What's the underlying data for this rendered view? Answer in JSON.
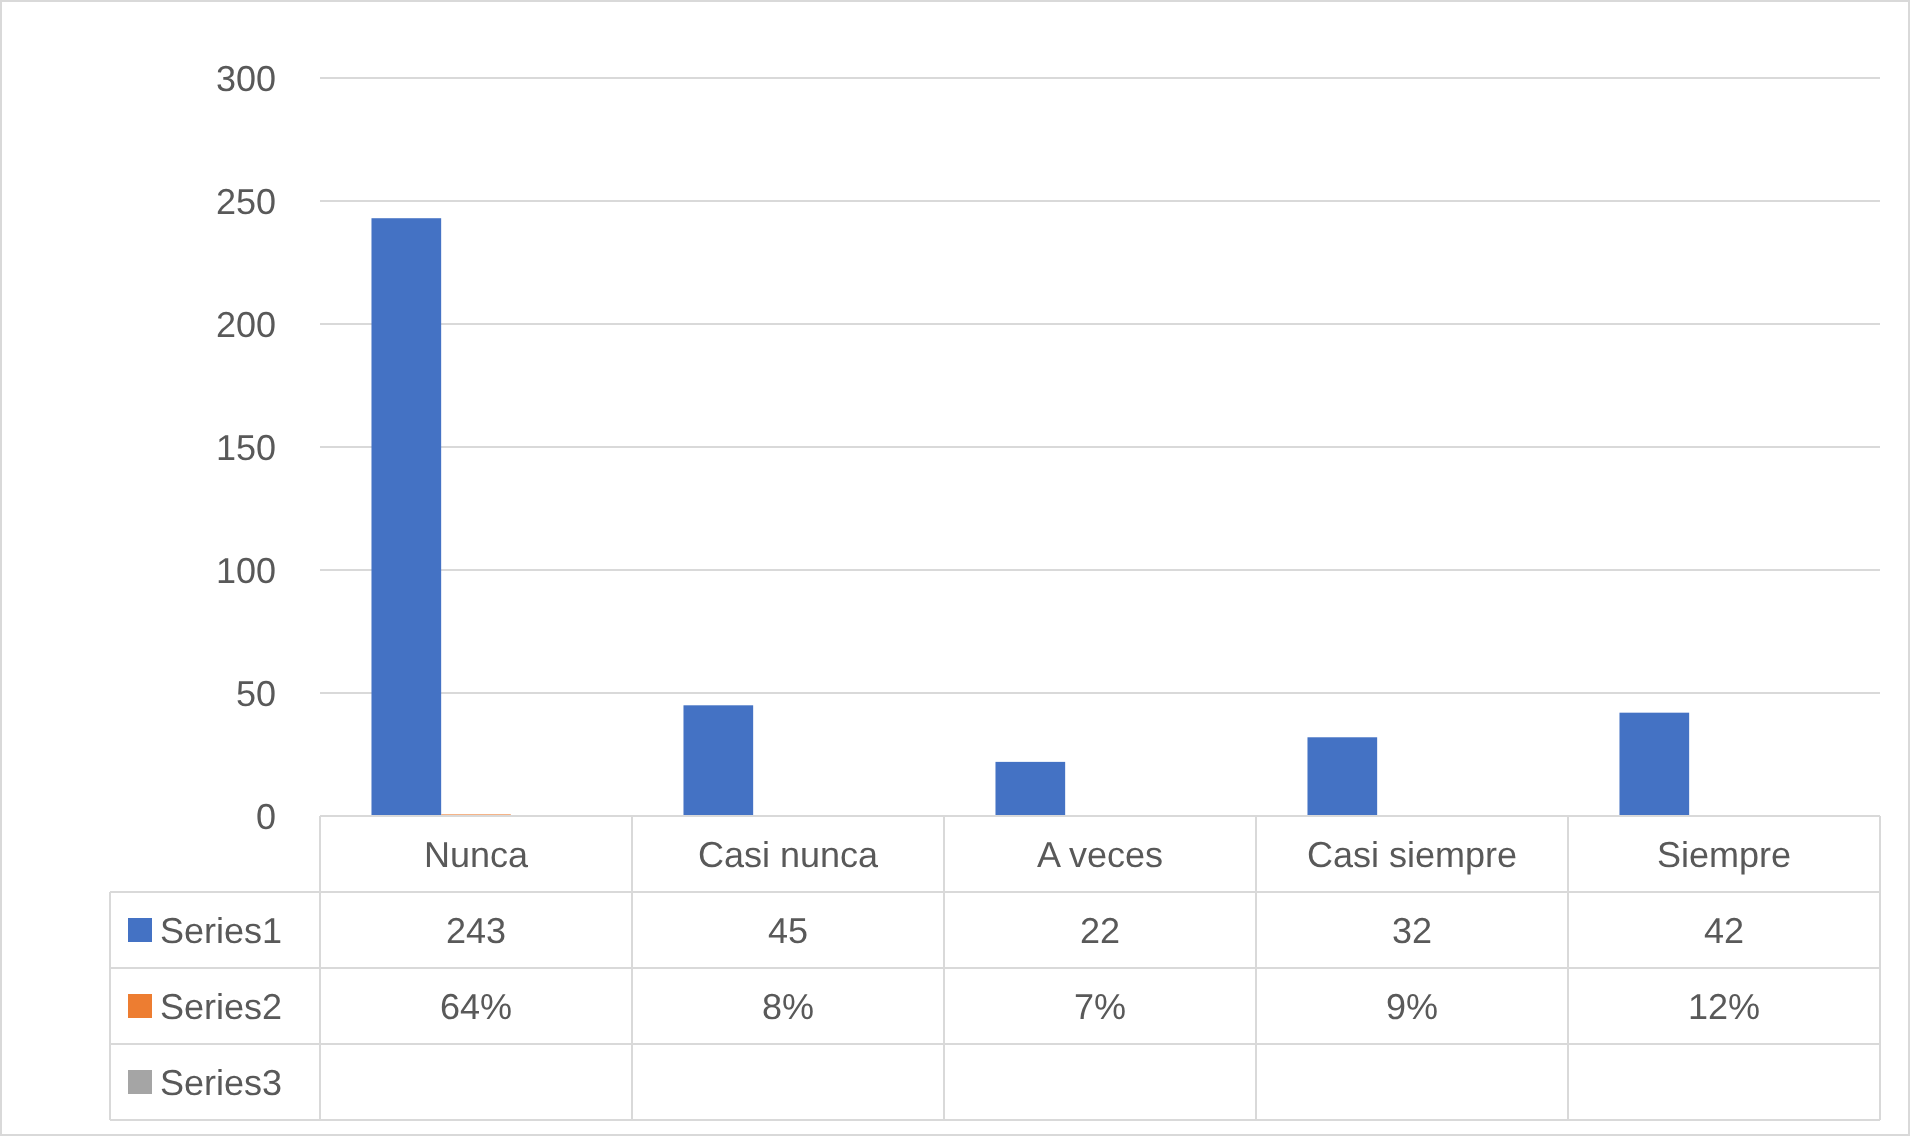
{
  "chart_data": {
    "type": "bar",
    "categories": [
      "Nunca",
      "Casi nunca",
      "A veces",
      "Casi siempre",
      "Siempre"
    ],
    "series": [
      {
        "name": "Series1",
        "color": "#4472c4",
        "values": [
          243,
          45,
          22,
          32,
          42
        ],
        "value_labels": [
          "243",
          "45",
          "22",
          "32",
          "42"
        ]
      },
      {
        "name": "Series2",
        "color": "#ed7d31",
        "values": [
          0.64,
          0.08,
          0.07,
          0.09,
          0.12
        ],
        "value_labels": [
          "64%",
          "8%",
          "7%",
          "9%",
          "12%"
        ]
      },
      {
        "name": "Series3",
        "color": "#a5a5a5",
        "values": [
          null,
          null,
          null,
          null,
          null
        ]
      }
    ],
    "ylim": [
      0,
      300
    ],
    "yticks": [
      0,
      50,
      100,
      150,
      200,
      250,
      300
    ],
    "grid": "y",
    "legend": "bottom"
  }
}
